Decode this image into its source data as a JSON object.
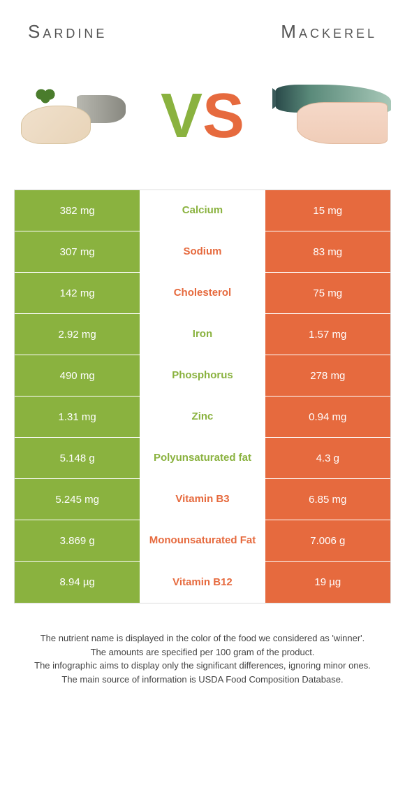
{
  "header": {
    "left": "Sardine",
    "right": "Mackerel"
  },
  "vs": {
    "v": "V",
    "s": "S"
  },
  "colors": {
    "left_bg": "#8ab23f",
    "right_bg": "#e66a3e",
    "left_text": "#8ab23f",
    "right_text": "#e66a3e",
    "mid_bg": "#ffffff"
  },
  "rows": [
    {
      "left": "382 mg",
      "mid": "Calcium",
      "right": "15 mg",
      "winner": "left"
    },
    {
      "left": "307 mg",
      "mid": "Sodium",
      "right": "83 mg",
      "winner": "right"
    },
    {
      "left": "142 mg",
      "mid": "Cholesterol",
      "right": "75 mg",
      "winner": "right"
    },
    {
      "left": "2.92 mg",
      "mid": "Iron",
      "right": "1.57 mg",
      "winner": "left"
    },
    {
      "left": "490 mg",
      "mid": "Phosphorus",
      "right": "278 mg",
      "winner": "left"
    },
    {
      "left": "1.31 mg",
      "mid": "Zinc",
      "right": "0.94 mg",
      "winner": "left"
    },
    {
      "left": "5.148 g",
      "mid": "Polyunsaturated fat",
      "right": "4.3 g",
      "winner": "left"
    },
    {
      "left": "5.245 mg",
      "mid": "Vitamin B3",
      "right": "6.85 mg",
      "winner": "right"
    },
    {
      "left": "3.869 g",
      "mid": "Monounsaturated Fat",
      "right": "7.006 g",
      "winner": "right"
    },
    {
      "left": "8.94 µg",
      "mid": "Vitamin B12",
      "right": "19 µg",
      "winner": "right"
    }
  ],
  "footnotes": [
    "The nutrient name is displayed in the color of the food we considered as 'winner'.",
    "The amounts are specified per 100 gram of the product.",
    "The infographic aims to display only the significant differences, ignoring minor ones.",
    "The main source of information is USDA Food Composition Database."
  ]
}
